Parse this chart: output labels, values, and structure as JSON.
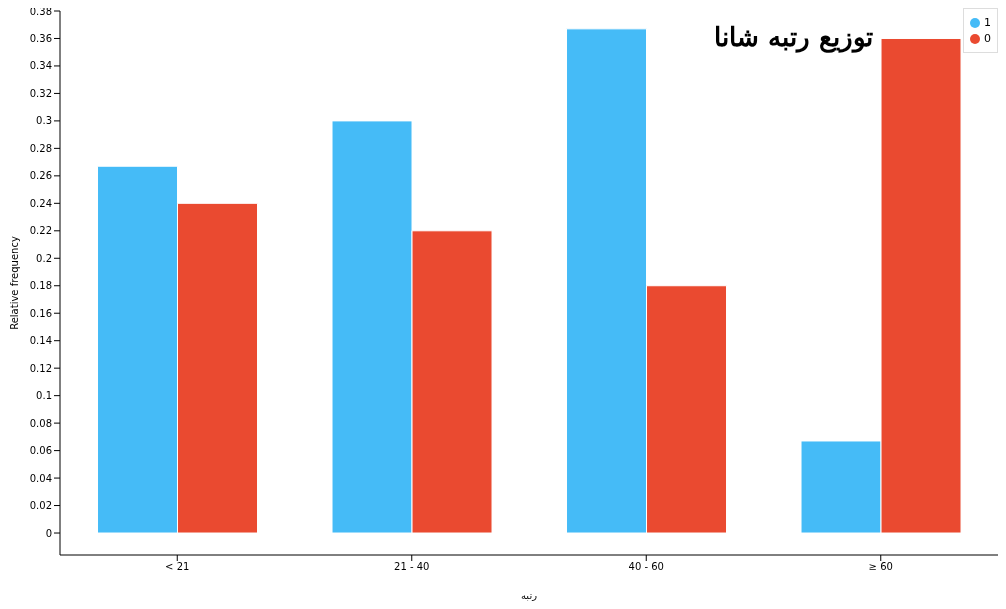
{
  "chart_data": {
    "type": "bar",
    "title": "توزیع رتبه شانا",
    "xlabel": "رتبه",
    "ylabel": "Relative frequency",
    "categories": [
      "< 21",
      "21 - 40",
      "40 - 60",
      "≥ 60"
    ],
    "series": [
      {
        "name": "1",
        "color": "#45bbf7",
        "values": [
          0.267,
          0.3,
          0.367,
          0.067
        ]
      },
      {
        "name": "0",
        "color": "#ea4a30",
        "values": [
          0.24,
          0.22,
          0.18,
          0.36
        ]
      }
    ],
    "ylim": [
      -0.016,
      0.38
    ],
    "yticks": [
      0,
      0.02,
      0.04,
      0.06,
      0.08,
      0.1,
      0.12,
      0.14,
      0.16,
      0.18,
      0.2,
      0.22,
      0.24,
      0.26,
      0.28,
      0.3,
      0.32,
      0.34,
      0.36,
      0.38
    ],
    "grid": false,
    "legend": "top right"
  }
}
